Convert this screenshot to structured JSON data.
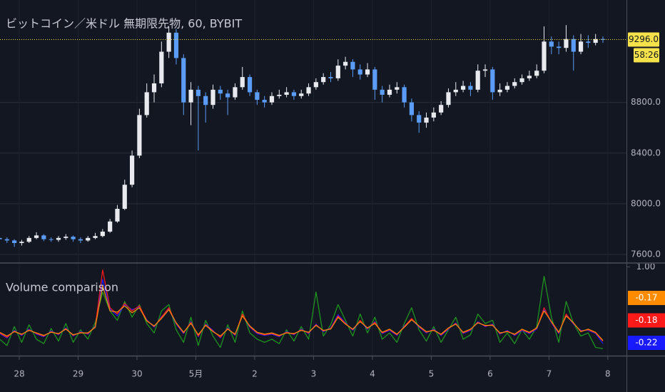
{
  "chart_data": [
    {
      "type": "candlestick",
      "title": "ビットコイン／米ドル 無期限先物, 60, BYBIT",
      "x": [
        -8,
        -5,
        -2,
        1,
        4,
        7,
        10,
        13,
        16,
        19,
        22,
        25,
        28,
        31,
        34,
        37,
        40,
        43,
        46,
        49,
        52,
        55,
        58,
        61,
        64,
        67,
        70,
        73,
        76,
        79,
        82,
        85,
        88,
        91,
        94,
        97,
        100,
        103,
        106,
        109,
        112,
        115,
        118,
        121,
        124,
        127,
        130,
        133,
        136,
        139,
        142,
        145,
        148,
        151,
        154,
        157,
        160,
        163,
        166,
        169,
        172,
        175,
        178,
        181,
        184,
        187,
        190,
        193,
        196,
        199,
        202,
        205,
        208,
        211,
        214,
        217,
        220,
        223,
        226,
        229,
        232,
        235,
        238
      ],
      "open": [
        7730,
        7720,
        7710,
        7690,
        7700,
        7730,
        7750,
        7720,
        7715,
        7730,
        7740,
        7720,
        7710,
        7730,
        7745,
        7780,
        7860,
        7960,
        8150,
        8380,
        8700,
        8880,
        8950,
        9200,
        9350,
        9150,
        8800,
        8900,
        8850,
        8780,
        8900,
        8870,
        8840,
        8920,
        9000,
        8880,
        8820,
        8800,
        8850,
        8860,
        8880,
        8850,
        8870,
        8920,
        8960,
        9000,
        8990,
        9090,
        9120,
        9060,
        9020,
        9060,
        8900,
        8860,
        8900,
        8920,
        8800,
        8700,
        8640,
        8680,
        8720,
        8780,
        8880,
        8900,
        8930,
        8900,
        9050,
        9060,
        8880,
        8900,
        8930,
        8960,
        8990,
        9010,
        9050,
        9280,
        9240,
        9230,
        9300,
        9200,
        9280,
        9270,
        9300
      ],
      "high": [
        7750,
        7735,
        7720,
        7715,
        7745,
        7775,
        7760,
        7735,
        7745,
        7760,
        7750,
        7735,
        7745,
        7770,
        7800,
        7880,
        7990,
        8190,
        8420,
        8750,
        8950,
        9020,
        9280,
        9400,
        9380,
        9180,
        8960,
        8930,
        8880,
        8940,
        8930,
        8900,
        8950,
        9080,
        9020,
        8900,
        8850,
        8880,
        8900,
        8920,
        8900,
        8900,
        8950,
        8990,
        9030,
        9040,
        9140,
        9160,
        9140,
        9100,
        9110,
        9080,
        8930,
        8940,
        8960,
        8940,
        8830,
        8730,
        8720,
        8760,
        8810,
        8910,
        8960,
        8970,
        8960,
        9100,
        9100,
        9080,
        8950,
        8960,
        8990,
        9020,
        9050,
        9100,
        9400,
        9320,
        9280,
        9410,
        9330,
        9340,
        9330,
        9340,
        9320
      ],
      "low": [
        7700,
        7690,
        7660,
        7670,
        7690,
        7720,
        7705,
        7700,
        7700,
        7715,
        7700,
        7690,
        7700,
        7720,
        7735,
        7770,
        7850,
        7950,
        8130,
        8360,
        8680,
        8800,
        8920,
        9150,
        9100,
        8700,
        8620,
        8420,
        8640,
        8750,
        8820,
        8700,
        8820,
        8900,
        8850,
        8780,
        8760,
        8780,
        8830,
        8840,
        8820,
        8830,
        8850,
        8900,
        8940,
        8960,
        8970,
        9060,
        9000,
        8980,
        9000,
        8820,
        8800,
        8840,
        8870,
        8760,
        8650,
        8560,
        8600,
        8650,
        8700,
        8760,
        8850,
        8880,
        8850,
        8880,
        9000,
        8820,
        8850,
        8880,
        8910,
        8940,
        8970,
        8990,
        9030,
        9180,
        9180,
        9200,
        9050,
        9180,
        9230,
        9250,
        9270
      ],
      "close": [
        7720,
        7710,
        7690,
        7700,
        7730,
        7750,
        7720,
        7715,
        7730,
        7740,
        7720,
        7710,
        7730,
        7745,
        7780,
        7860,
        7960,
        8150,
        8380,
        8700,
        8880,
        8950,
        9200,
        9350,
        9150,
        8800,
        8900,
        8850,
        8780,
        8900,
        8870,
        8840,
        8920,
        9000,
        8880,
        8820,
        8800,
        8850,
        8860,
        8880,
        8850,
        8870,
        8920,
        8960,
        9000,
        8990,
        9090,
        9120,
        9060,
        9020,
        9060,
        8900,
        8860,
        8900,
        8920,
        8800,
        8700,
        8640,
        8680,
        8720,
        8780,
        8880,
        8900,
        8930,
        8900,
        9050,
        9060,
        8880,
        8900,
        8930,
        8960,
        8990,
        9010,
        9050,
        9280,
        9240,
        9230,
        9300,
        9200,
        9280,
        9270,
        9300,
        9296
      ],
      "up_color": "#e8eaf0",
      "down_color": "#5b9cf6",
      "xlim": [
        -7.85,
        247.6
      ],
      "xticks": [
        {
          "value": 0,
          "label": "28"
        },
        {
          "value": 24,
          "label": "29"
        },
        {
          "value": 48,
          "label": "30"
        },
        {
          "value": 72,
          "label": "5月"
        },
        {
          "value": 96,
          "label": "2"
        },
        {
          "value": 120,
          "label": "3"
        },
        {
          "value": 144,
          "label": "4"
        },
        {
          "value": 168,
          "label": "5"
        },
        {
          "value": 192,
          "label": "6"
        },
        {
          "value": 216,
          "label": "7"
        },
        {
          "value": 240,
          "label": "8"
        }
      ],
      "ylim": [
        7538,
        9608
      ],
      "yticks": [
        {
          "value": 7600,
          "label": "7600.0"
        },
        {
          "value": 8000,
          "label": "8000.0"
        },
        {
          "value": 8400,
          "label": "8400.0"
        },
        {
          "value": 8800,
          "label": "8800.0"
        }
      ],
      "grid": true,
      "last_price": {
        "value": 9296,
        "label": "9296.0"
      },
      "last_price_color": "#f5e14a",
      "countdown": "58:26"
    },
    {
      "type": "line",
      "title": "Volume comparison",
      "x": [
        -8,
        -5,
        -2,
        1,
        4,
        7,
        10,
        13,
        16,
        19,
        22,
        25,
        28,
        31,
        34,
        37,
        40,
        43,
        46,
        49,
        52,
        55,
        58,
        61,
        64,
        67,
        70,
        73,
        76,
        79,
        82,
        85,
        88,
        91,
        94,
        97,
        100,
        103,
        106,
        109,
        112,
        115,
        118,
        121,
        124,
        127,
        130,
        133,
        136,
        139,
        142,
        145,
        148,
        151,
        154,
        157,
        160,
        163,
        166,
        169,
        172,
        175,
        178,
        181,
        184,
        187,
        190,
        193,
        196,
        199,
        202,
        205,
        208,
        211,
        214,
        217,
        220,
        223,
        226,
        229,
        232,
        235,
        238
      ],
      "series": [
        {
          "color": "#ff8c00",
          "values": [
            -0.04,
            -0.1,
            -0.03,
            -0.07,
            -0.01,
            -0.05,
            -0.09,
            -0.04,
            -0.06,
            0.01,
            -0.08,
            -0.05,
            -0.05,
            0.04,
            0.7,
            0.3,
            0.28,
            0.38,
            0.27,
            0.35,
            0.14,
            0.06,
            0.18,
            0.32,
            0.11,
            -0.04,
            0.1,
            -0.08,
            0.07,
            -0.03,
            -0.1,
            0.01,
            -0.07,
            0.22,
            0.06,
            -0.04,
            -0.07,
            -0.05,
            -0.09,
            -0.05,
            -0.06,
            -0.01,
            -0.04,
            0.07,
            -0.01,
            0.01,
            0.2,
            0.09,
            0.01,
            0.13,
            0.03,
            0.1,
            -0.04,
            0.01,
            -0.07,
            0.04,
            0.16,
            0.06,
            -0.03,
            -0.01,
            -0.07,
            0.03,
            0.09,
            -0.04,
            0.01,
            0.11,
            0.07,
            0.07,
            -0.05,
            -0.03,
            -0.07,
            0.01,
            -0.04,
            0.03,
            0.3,
            0.13,
            -0.04,
            0.22,
            0.11,
            -0.03,
            0.01,
            -0.04,
            -0.17
          ]
        },
        {
          "color": "#ff1a1a",
          "values": [
            -0.05,
            -0.12,
            -0.02,
            -0.08,
            0.0,
            -0.06,
            -0.1,
            -0.03,
            -0.07,
            0.02,
            -0.09,
            -0.04,
            -0.06,
            0.05,
            0.95,
            0.35,
            0.25,
            0.42,
            0.3,
            0.38,
            0.15,
            0.05,
            0.2,
            0.35,
            0.1,
            -0.05,
            0.12,
            -0.1,
            0.08,
            -0.02,
            -0.12,
            0.02,
            -0.08,
            0.25,
            0.05,
            -0.05,
            -0.08,
            -0.06,
            -0.1,
            -0.04,
            -0.07,
            0.0,
            -0.05,
            0.08,
            -0.02,
            0.02,
            0.22,
            0.1,
            0.0,
            0.15,
            0.02,
            0.12,
            -0.05,
            0.0,
            -0.08,
            0.05,
            0.18,
            0.05,
            -0.04,
            0.0,
            -0.08,
            0.02,
            0.1,
            -0.05,
            0.0,
            0.12,
            0.06,
            0.08,
            -0.06,
            -0.02,
            -0.08,
            0.0,
            -0.05,
            0.02,
            0.35,
            0.12,
            -0.05,
            0.25,
            0.1,
            -0.02,
            0.0,
            -0.05,
            -0.18
          ]
        },
        {
          "color": "#1a1aff",
          "values": [
            -0.06,
            -0.13,
            -0.01,
            -0.09,
            0.01,
            -0.07,
            -0.11,
            -0.02,
            -0.08,
            0.03,
            -0.1,
            -0.03,
            -0.07,
            0.06,
            0.8,
            0.33,
            0.22,
            0.4,
            0.32,
            0.36,
            0.16,
            0.04,
            0.21,
            0.33,
            0.09,
            -0.06,
            0.13,
            -0.11,
            0.09,
            -0.01,
            -0.13,
            0.03,
            -0.09,
            0.24,
            0.04,
            -0.06,
            -0.09,
            -0.07,
            -0.11,
            -0.03,
            -0.08,
            0.01,
            -0.06,
            0.09,
            -0.03,
            0.03,
            0.24,
            0.11,
            -0.01,
            0.14,
            0.01,
            0.13,
            -0.06,
            -0.01,
            -0.09,
            0.06,
            0.17,
            0.04,
            -0.05,
            0.01,
            -0.09,
            0.01,
            0.11,
            -0.06,
            -0.01,
            0.13,
            0.05,
            0.09,
            -0.07,
            -0.01,
            -0.09,
            -0.01,
            -0.06,
            0.01,
            0.33,
            0.11,
            -0.06,
            0.24,
            0.09,
            -0.01,
            -0.01,
            -0.06,
            -0.22
          ]
        },
        {
          "color": "#1e9c1e",
          "values": [
            -0.15,
            -0.25,
            0.05,
            -0.2,
            0.08,
            -0.15,
            -0.22,
            0.02,
            -0.18,
            0.1,
            -0.2,
            0.0,
            -0.15,
            0.12,
            0.6,
            0.3,
            0.15,
            0.45,
            0.2,
            0.4,
            0.1,
            -0.05,
            0.3,
            0.4,
            0.0,
            -0.2,
            0.2,
            -0.25,
            0.15,
            -0.1,
            -0.28,
            0.08,
            -0.2,
            0.3,
            -0.05,
            -0.15,
            -0.2,
            -0.15,
            -0.22,
            0.0,
            -0.18,
            0.05,
            -0.15,
            0.6,
            -0.1,
            0.08,
            0.4,
            0.15,
            -0.1,
            0.25,
            -0.05,
            0.2,
            -0.15,
            -0.05,
            -0.2,
            0.1,
            0.35,
            0.0,
            -0.18,
            0.05,
            -0.2,
            0.0,
            0.2,
            -0.15,
            -0.08,
            0.25,
            0.1,
            0.15,
            -0.2,
            -0.05,
            -0.22,
            0.0,
            -0.15,
            0.05,
            0.85,
            0.2,
            -0.2,
            0.45,
            0.1,
            -0.1,
            -0.05,
            -0.28,
            -0.3
          ]
        }
      ],
      "xlim": [
        -7.85,
        247.6
      ],
      "ylim": [
        -0.4,
        1.05
      ],
      "yticks": [
        {
          "value": 1,
          "label": "1.00"
        }
      ]
    }
  ]
}
